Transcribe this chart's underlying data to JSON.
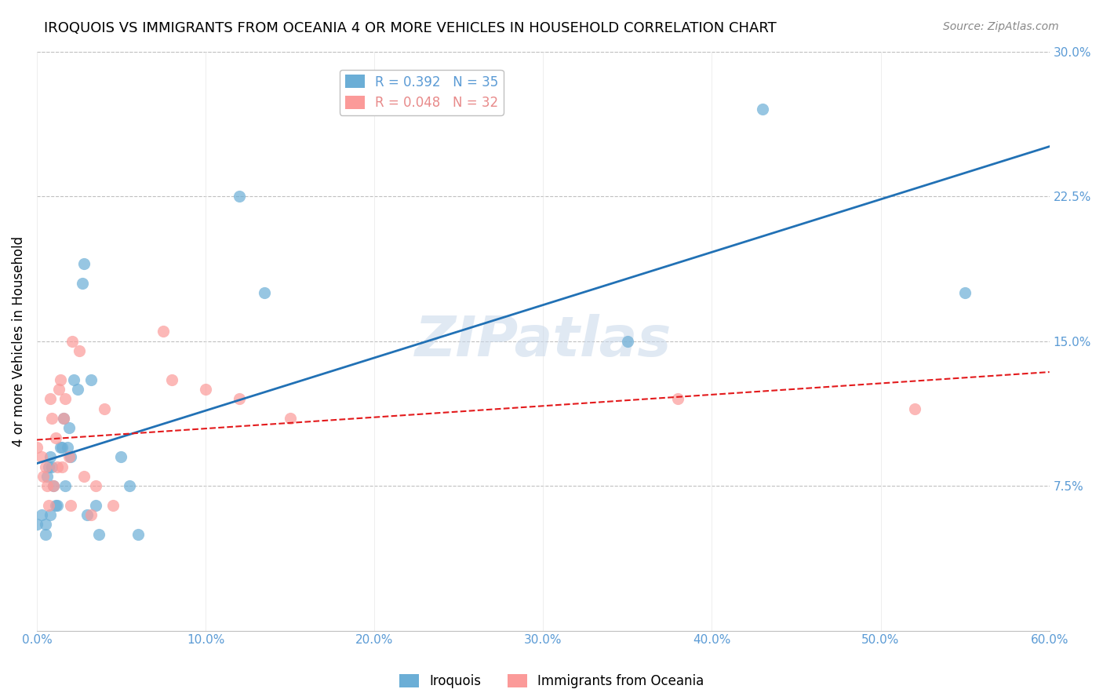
{
  "title": "IROQUOIS VS IMMIGRANTS FROM OCEANIA 4 OR MORE VEHICLES IN HOUSEHOLD CORRELATION CHART",
  "source": "Source: ZipAtlas.com",
  "xlabel": "",
  "ylabel": "4 or more Vehicles in Household",
  "xlim": [
    0.0,
    0.6
  ],
  "ylim": [
    0.0,
    0.3
  ],
  "xticks": [
    0.0,
    0.1,
    0.2,
    0.3,
    0.4,
    0.5,
    0.6
  ],
  "yticks_left": [],
  "yticks_right": [
    0.0,
    0.075,
    0.15,
    0.225,
    0.3
  ],
  "ytick_labels_right": [
    "",
    "7.5%",
    "15.0%",
    "22.5%",
    "30.0%"
  ],
  "xtick_labels": [
    "0.0%",
    "",
    "",
    "",
    "",
    "",
    "60.0%"
  ],
  "legend1_r": "R = 0.392",
  "legend1_n": "N = 35",
  "legend2_r": "R = 0.048",
  "legend2_n": "N = 32",
  "blue_color": "#6baed6",
  "blue_line_color": "#2171b5",
  "pink_color": "#fb9a99",
  "pink_line_color": "#e31a1c",
  "watermark": "ZIPatlas",
  "blue_R": 0.392,
  "blue_N": 35,
  "pink_R": 0.048,
  "pink_N": 32,
  "iroquois_x": [
    0.0,
    0.003,
    0.005,
    0.005,
    0.006,
    0.007,
    0.008,
    0.008,
    0.009,
    0.01,
    0.011,
    0.012,
    0.014,
    0.015,
    0.016,
    0.017,
    0.018,
    0.019,
    0.02,
    0.022,
    0.024,
    0.027,
    0.028,
    0.03,
    0.032,
    0.035,
    0.037,
    0.05,
    0.055,
    0.06,
    0.12,
    0.135,
    0.35,
    0.43,
    0.55
  ],
  "iroquois_y": [
    0.055,
    0.06,
    0.05,
    0.055,
    0.08,
    0.085,
    0.09,
    0.06,
    0.085,
    0.075,
    0.065,
    0.065,
    0.095,
    0.095,
    0.11,
    0.075,
    0.095,
    0.105,
    0.09,
    0.13,
    0.125,
    0.18,
    0.19,
    0.06,
    0.13,
    0.065,
    0.05,
    0.09,
    0.075,
    0.05,
    0.225,
    0.175,
    0.15,
    0.27,
    0.175
  ],
  "oceania_x": [
    0.0,
    0.003,
    0.004,
    0.005,
    0.006,
    0.007,
    0.008,
    0.009,
    0.01,
    0.011,
    0.012,
    0.013,
    0.014,
    0.015,
    0.016,
    0.017,
    0.019,
    0.02,
    0.021,
    0.025,
    0.028,
    0.032,
    0.035,
    0.04,
    0.045,
    0.075,
    0.08,
    0.1,
    0.12,
    0.15,
    0.38,
    0.52
  ],
  "oceania_y": [
    0.095,
    0.09,
    0.08,
    0.085,
    0.075,
    0.065,
    0.12,
    0.11,
    0.075,
    0.1,
    0.085,
    0.125,
    0.13,
    0.085,
    0.11,
    0.12,
    0.09,
    0.065,
    0.15,
    0.145,
    0.08,
    0.06,
    0.075,
    0.115,
    0.065,
    0.155,
    0.13,
    0.125,
    0.12,
    0.11,
    0.12,
    0.115
  ]
}
